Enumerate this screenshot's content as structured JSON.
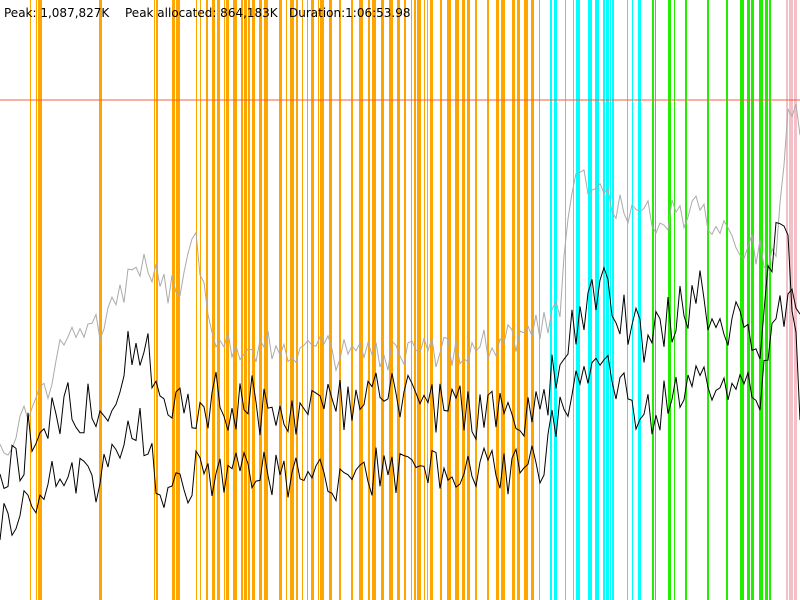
{
  "header": {
    "peak": "Peak: 1,087,827K",
    "peak_allocated": "Peak allocated: 864,183K",
    "duration": "Duration:1:06:53.98"
  }
}
